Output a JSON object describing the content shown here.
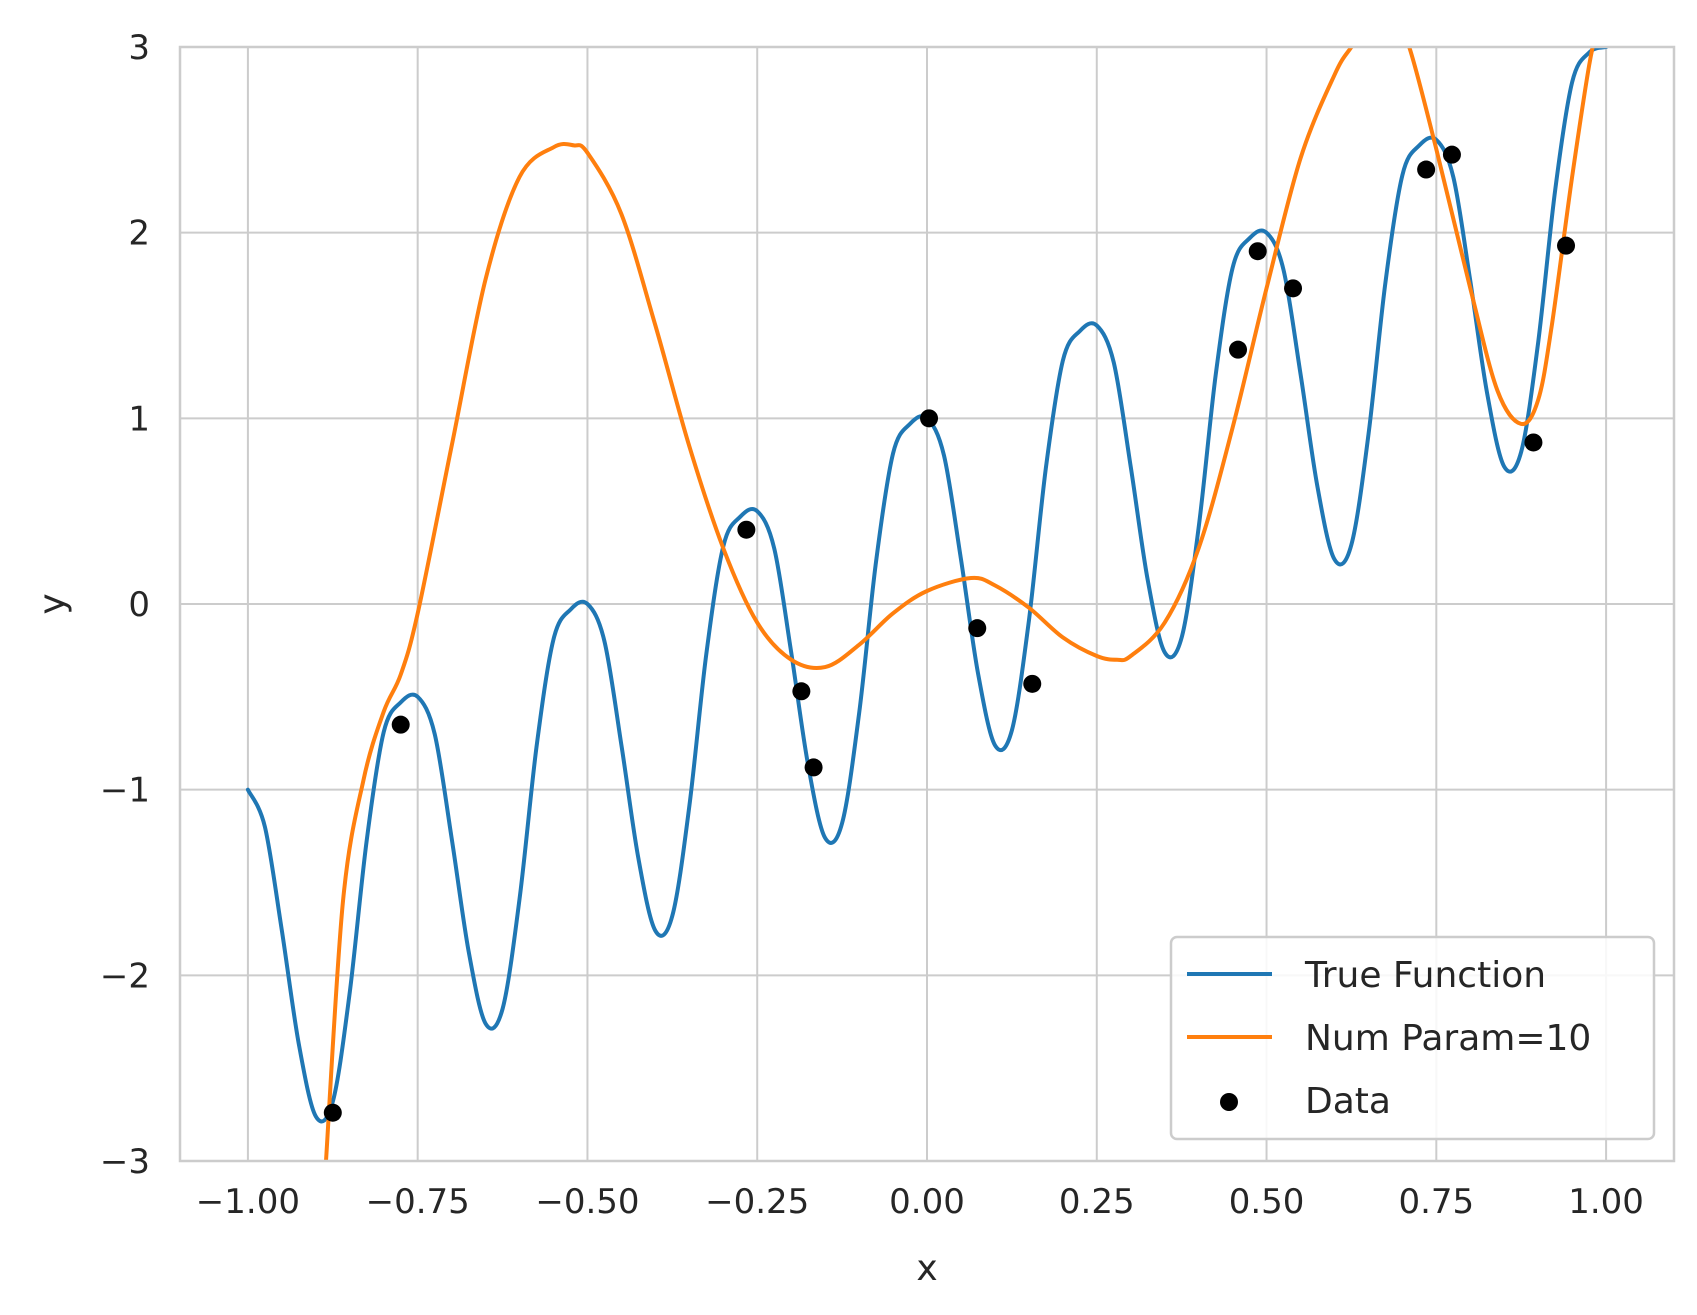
{
  "colors": {
    "true_function": "#1f77b4",
    "fit": "#ff7f0e",
    "data": "#000000",
    "grid": "#cccccc",
    "text": "#262626"
  },
  "chart_data": {
    "type": "line",
    "title": "",
    "xlabel": "x",
    "ylabel": "y",
    "xlim": [
      -1.1,
      1.1
    ],
    "ylim": [
      -3,
      3
    ],
    "grid": true,
    "legend_position": "lower right",
    "x_ticks": [
      -1.0,
      -0.75,
      -0.5,
      -0.25,
      0.0,
      0.25,
      0.5,
      0.75,
      1.0
    ],
    "x_tick_labels": [
      "−1.00",
      "−0.75",
      "−0.50",
      "−0.25",
      "0.00",
      "0.25",
      "0.50",
      "0.75",
      "1.00"
    ],
    "y_ticks": [
      -3,
      -2,
      -1,
      0,
      1,
      2,
      3
    ],
    "y_tick_labels": [
      "−3",
      "−2",
      "−1",
      "0",
      "1",
      "2",
      "3"
    ],
    "series": [
      {
        "name": "True Function",
        "kind": "line",
        "color": "#1f77b4",
        "points": [
          [
            -1.0,
            -1.0
          ],
          [
            -0.975,
            -1.2
          ],
          [
            -0.95,
            -1.76
          ],
          [
            -0.925,
            -2.37
          ],
          [
            -0.9,
            -2.76
          ],
          [
            -0.875,
            -2.68
          ],
          [
            -0.85,
            -2.09
          ],
          [
            -0.825,
            -1.27
          ],
          [
            -0.8,
            -0.69
          ],
          [
            -0.775,
            -0.53
          ],
          [
            -0.75,
            -0.5
          ],
          [
            -0.725,
            -0.7
          ],
          [
            -0.7,
            -1.26
          ],
          [
            -0.675,
            -1.87
          ],
          [
            -0.65,
            -2.26
          ],
          [
            -0.625,
            -2.18
          ],
          [
            -0.6,
            -1.59
          ],
          [
            -0.575,
            -0.77
          ],
          [
            -0.55,
            -0.19
          ],
          [
            -0.525,
            -0.03
          ],
          [
            -0.5,
            0.0
          ],
          [
            -0.475,
            -0.2
          ],
          [
            -0.45,
            -0.76
          ],
          [
            -0.425,
            -1.37
          ],
          [
            -0.4,
            -1.76
          ],
          [
            -0.375,
            -1.68
          ],
          [
            -0.35,
            -1.09
          ],
          [
            -0.325,
            -0.27
          ],
          [
            -0.3,
            0.31
          ],
          [
            -0.275,
            0.47
          ],
          [
            -0.25,
            0.5
          ],
          [
            -0.225,
            0.3
          ],
          [
            -0.2,
            -0.26
          ],
          [
            -0.175,
            -0.87
          ],
          [
            -0.15,
            -1.26
          ],
          [
            -0.125,
            -1.18
          ],
          [
            -0.1,
            -0.59
          ],
          [
            -0.075,
            0.23
          ],
          [
            -0.05,
            0.81
          ],
          [
            -0.025,
            0.97
          ],
          [
            0.0,
            1.0
          ],
          [
            0.025,
            0.8
          ],
          [
            0.05,
            0.24
          ],
          [
            0.075,
            -0.37
          ],
          [
            0.1,
            -0.76
          ],
          [
            0.125,
            -0.68
          ],
          [
            0.15,
            -0.09
          ],
          [
            0.175,
            0.73
          ],
          [
            0.2,
            1.31
          ],
          [
            0.225,
            1.47
          ],
          [
            0.25,
            1.5
          ],
          [
            0.275,
            1.3
          ],
          [
            0.3,
            0.74
          ],
          [
            0.325,
            0.13
          ],
          [
            0.35,
            -0.26
          ],
          [
            0.375,
            -0.18
          ],
          [
            0.4,
            0.41
          ],
          [
            0.425,
            1.23
          ],
          [
            0.45,
            1.81
          ],
          [
            0.475,
            1.97
          ],
          [
            0.5,
            2.0
          ],
          [
            0.525,
            1.8
          ],
          [
            0.55,
            1.24
          ],
          [
            0.575,
            0.63
          ],
          [
            0.6,
            0.24
          ],
          [
            0.625,
            0.32
          ],
          [
            0.65,
            0.91
          ],
          [
            0.675,
            1.73
          ],
          [
            0.7,
            2.31
          ],
          [
            0.725,
            2.47
          ],
          [
            0.75,
            2.5
          ],
          [
            0.775,
            2.3
          ],
          [
            0.8,
            1.74
          ],
          [
            0.825,
            1.13
          ],
          [
            0.85,
            0.74
          ],
          [
            0.875,
            0.82
          ],
          [
            0.9,
            1.41
          ],
          [
            0.925,
            2.23
          ],
          [
            0.95,
            2.81
          ],
          [
            0.975,
            2.97
          ],
          [
            1.0,
            3.0
          ]
        ]
      },
      {
        "name": "Num Param=10",
        "kind": "line",
        "color": "#ff7f0e",
        "points": [
          [
            -0.885,
            -3.0
          ],
          [
            -0.86,
            -1.6
          ],
          [
            -0.83,
            -0.95
          ],
          [
            -0.8,
            -0.58
          ],
          [
            -0.775,
            -0.38
          ],
          [
            -0.75,
            -0.05
          ],
          [
            -0.7,
            0.85
          ],
          [
            -0.65,
            1.75
          ],
          [
            -0.6,
            2.3
          ],
          [
            -0.55,
            2.46
          ],
          [
            -0.52,
            2.47
          ],
          [
            -0.5,
            2.43
          ],
          [
            -0.45,
            2.1
          ],
          [
            -0.4,
            1.5
          ],
          [
            -0.35,
            0.85
          ],
          [
            -0.3,
            0.3
          ],
          [
            -0.25,
            -0.1
          ],
          [
            -0.2,
            -0.3
          ],
          [
            -0.15,
            -0.34
          ],
          [
            -0.1,
            -0.22
          ],
          [
            -0.05,
            -0.05
          ],
          [
            0.0,
            0.07
          ],
          [
            0.065,
            0.14
          ],
          [
            0.1,
            0.1
          ],
          [
            0.15,
            -0.02
          ],
          [
            0.2,
            -0.18
          ],
          [
            0.25,
            -0.28
          ],
          [
            0.28,
            -0.3
          ],
          [
            0.3,
            -0.28
          ],
          [
            0.35,
            -0.1
          ],
          [
            0.4,
            0.3
          ],
          [
            0.45,
            0.95
          ],
          [
            0.5,
            1.7
          ],
          [
            0.55,
            2.4
          ],
          [
            0.6,
            2.85
          ],
          [
            0.625,
            3.0
          ],
          [
            0.65,
            3.12
          ],
          [
            0.67,
            3.15
          ],
          [
            0.69,
            3.1
          ],
          [
            0.71,
            3.0
          ],
          [
            0.75,
            2.45
          ],
          [
            0.8,
            1.7
          ],
          [
            0.84,
            1.15
          ],
          [
            0.875,
            0.97
          ],
          [
            0.9,
            1.1
          ],
          [
            0.92,
            1.5
          ],
          [
            0.95,
            2.3
          ],
          [
            0.975,
            2.9
          ],
          [
            0.99,
            3.15
          ]
        ]
      },
      {
        "name": "Data",
        "kind": "scatter",
        "color": "#000000",
        "points": [
          [
            -0.875,
            -2.74
          ],
          [
            -0.775,
            -0.65
          ],
          [
            -0.266,
            0.4
          ],
          [
            -0.185,
            -0.47
          ],
          [
            -0.167,
            -0.88
          ],
          [
            0.003,
            1.0
          ],
          [
            0.074,
            -0.13
          ],
          [
            0.155,
            -0.43
          ],
          [
            0.458,
            1.37
          ],
          [
            0.487,
            1.9
          ],
          [
            0.539,
            1.7
          ],
          [
            0.735,
            2.34
          ],
          [
            0.773,
            2.42
          ],
          [
            0.893,
            0.87
          ],
          [
            0.941,
            1.93
          ]
        ]
      }
    ]
  }
}
